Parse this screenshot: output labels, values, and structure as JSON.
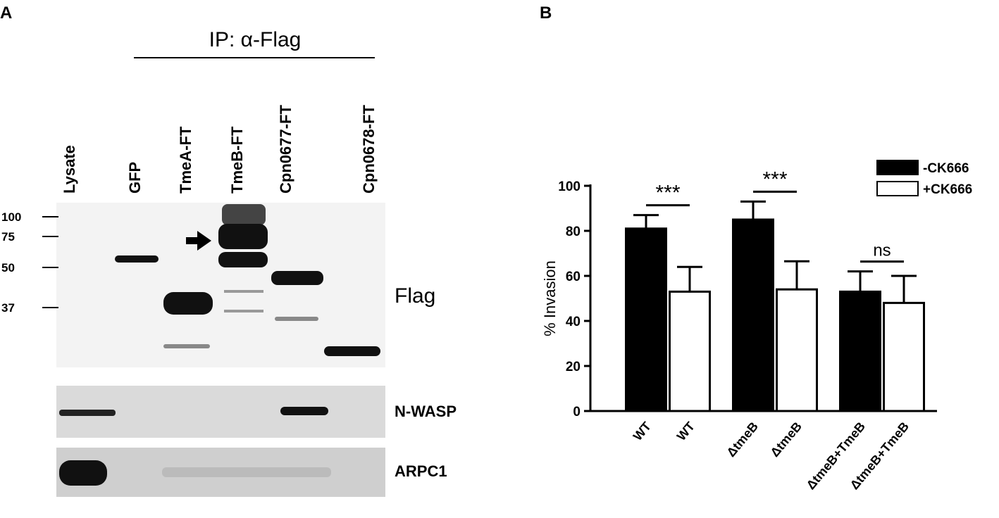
{
  "panel_a": {
    "label": "A",
    "header": "IP: α-Flag",
    "lanes": [
      "Lysate",
      "GFP",
      "TmeA-FT",
      "TmeB-FT",
      "Cpn0677-FT",
      "Cpn0678-FT"
    ],
    "markers": [
      100,
      75,
      50,
      37
    ],
    "blots": [
      "Flag",
      "N-WASP",
      "ARPC1"
    ]
  },
  "chart_data": {
    "type": "bar",
    "panel_label": "B",
    "y_label": "% Invasion",
    "categories": [
      "WT",
      "ΔtmeB",
      "ΔtmeB+TmeB"
    ],
    "series": [
      {
        "name": "-CK666",
        "color": "#000000",
        "values": [
          81,
          85,
          53
        ],
        "errors": [
          6,
          8,
          9
        ]
      },
      {
        "name": "+CK666",
        "color": "#ffffff",
        "values": [
          53,
          54,
          48
        ],
        "errors": [
          11,
          12.5,
          12
        ]
      }
    ],
    "annotations": [
      "***",
      "***",
      "ns"
    ],
    "ylim": [
      0,
      100
    ],
    "yticks": [
      0,
      20,
      40,
      60,
      80,
      100
    ],
    "legend": "upper right"
  }
}
